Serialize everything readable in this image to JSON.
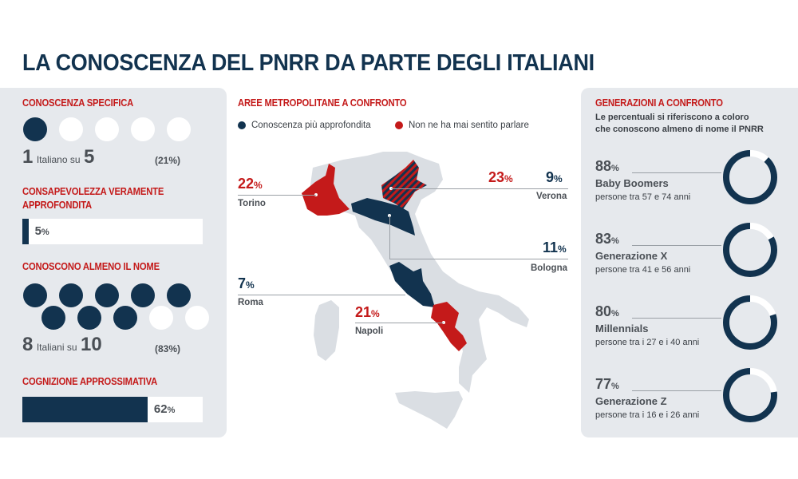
{
  "title": "LA CONOSCENZA DEL PNRR DA PARTE DEGLI ITALIANI",
  "colors": {
    "navy": "#12334f",
    "red": "#c41a1a",
    "panel": "#e6e9ed",
    "map_gray": "#dadee3",
    "text": "#4a4f55"
  },
  "left_panel": {
    "specifica": {
      "title": "CONOSCENZA SPECIFICA",
      "dots_filled": 1,
      "dots_total": 5,
      "ratio_num": "1",
      "ratio_text": "Italiano su",
      "ratio_den": "5",
      "pct": "(21%)"
    },
    "approfondita": {
      "title_line1": "CONSAPEVOLEZZA VERAMENTE",
      "title_line2": "APPROFONDITA",
      "value": 5,
      "label": "5",
      "unit": "%"
    },
    "almeno_nome": {
      "title": "CONOSCONO ALMENO IL NOME",
      "dots_filled": 8,
      "dots_total": 10,
      "ratio_num": "8",
      "ratio_text": "Italiani su",
      "ratio_den": "10",
      "pct": "(83%)"
    },
    "approssimativa": {
      "title": "COGNIZIONE APPROSSIMATIVA",
      "value": 62,
      "label": "62",
      "unit": "%"
    }
  },
  "middle": {
    "title": "AREE METROPOLITANE A CONFRONTO",
    "legend": [
      {
        "label": "Conoscenza più approfondita",
        "color": "#12334f"
      },
      {
        "label": "Non ne ha mai sentito parlare",
        "color": "#c41a1a"
      }
    ],
    "cities": {
      "torino": {
        "name": "Torino",
        "red": "22",
        "unit": "%"
      },
      "verona": {
        "name": "Verona",
        "red": "23",
        "navy": "9",
        "unit": "%"
      },
      "bologna": {
        "name": "Bologna",
        "navy": "11",
        "unit": "%"
      },
      "roma": {
        "name": "Roma",
        "navy": "7",
        "unit": "%"
      },
      "napoli": {
        "name": "Napoli",
        "red": "21",
        "unit": "%"
      }
    }
  },
  "right_panel": {
    "title": "GENERAZIONI A CONFRONTO",
    "subtitle_line1": "Le percentuali si riferiscono a coloro",
    "subtitle_line2": "che conoscono almeno di nome il PNRR",
    "generations": [
      {
        "pct": "88",
        "value": 88,
        "name": "Baby Boomers",
        "age": "persone tra 57 e 74 anni"
      },
      {
        "pct": "83",
        "value": 83,
        "name": "Generazione X",
        "age": "persone tra 41 e 56 anni"
      },
      {
        "pct": "80",
        "value": 80,
        "name": "Millennials",
        "age": "persone tra i 27 e i 40 anni"
      },
      {
        "pct": "77",
        "value": 77,
        "name": "Generazione Z",
        "age": "persone tra i 16 e i 26 anni"
      }
    ],
    "unit": "%"
  },
  "chart_data": [
    {
      "type": "bar",
      "title": "Conoscenza del PNRR (Italia)",
      "categories": [
        "Conoscenza specifica",
        "Consapevolezza veramente approfondita",
        "Conoscono almeno il nome",
        "Cognizione approssimativa"
      ],
      "values": [
        21,
        5,
        83,
        62
      ],
      "ylabel": "%",
      "ylim": [
        0,
        100
      ]
    },
    {
      "type": "bar",
      "title": "Aree metropolitane a confronto",
      "categories": [
        "Torino",
        "Verona",
        "Bologna",
        "Roma",
        "Napoli"
      ],
      "series": [
        {
          "name": "Conoscenza più approfondita",
          "values": [
            null,
            9,
            11,
            7,
            null
          ]
        },
        {
          "name": "Non ne ha mai sentito parlare",
          "values": [
            22,
            23,
            null,
            null,
            21
          ]
        }
      ],
      "ylabel": "%"
    },
    {
      "type": "pie",
      "title": "Generazioni a confronto",
      "categories": [
        "Baby Boomers",
        "Generazione X",
        "Millennials",
        "Generazione Z"
      ],
      "values": [
        88,
        83,
        80,
        77
      ],
      "ylabel": "%"
    }
  ]
}
